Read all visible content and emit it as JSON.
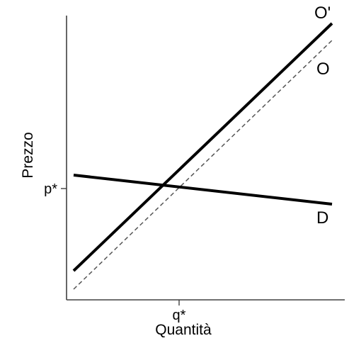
{
  "chart_data": {
    "type": "line",
    "xlabel": "Quantità",
    "ylabel": "Prezzo",
    "x_tick_label": "q*",
    "y_tick_label": "p*",
    "series": [
      {
        "name": "O'",
        "style": "solid"
      },
      {
        "name": "O",
        "style": "dashed"
      },
      {
        "name": "D",
        "style": "solid"
      }
    ],
    "grid": false,
    "colors": {
      "lines": "#000000",
      "axes": "#404040",
      "background": "#ffffff"
    }
  }
}
